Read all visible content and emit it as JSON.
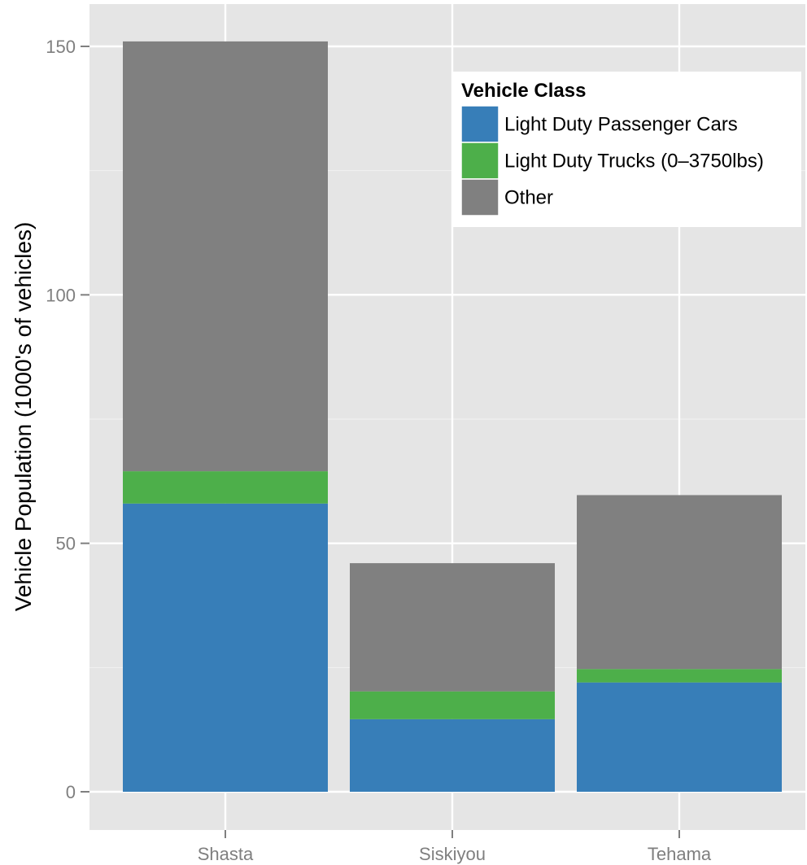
{
  "chart_data": {
    "type": "bar",
    "stacked": true,
    "title": "",
    "xlabel": "",
    "ylabel": "Vehicle Population (1000's of vehicles)",
    "categories": [
      "Shasta",
      "Siskiyou",
      "Tehama"
    ],
    "ylim": [
      -7.5,
      158.5
    ],
    "yticks": [
      0,
      50,
      100,
      150
    ],
    "grid": true,
    "legend": {
      "title": "Vehicle Class",
      "placement": "top-right"
    },
    "series": [
      {
        "name": "Light Duty Passenger Cars",
        "color": "#377EB8",
        "values": [
          58.0,
          14.6,
          22.0
        ]
      },
      {
        "name": "Light Duty Trucks (0–3750lbs)",
        "color": "#4DAF4A",
        "values": [
          6.5,
          5.6,
          2.7
        ]
      },
      {
        "name": "Other",
        "color": "#808080",
        "values": [
          86.5,
          25.8,
          35.0
        ]
      }
    ]
  }
}
